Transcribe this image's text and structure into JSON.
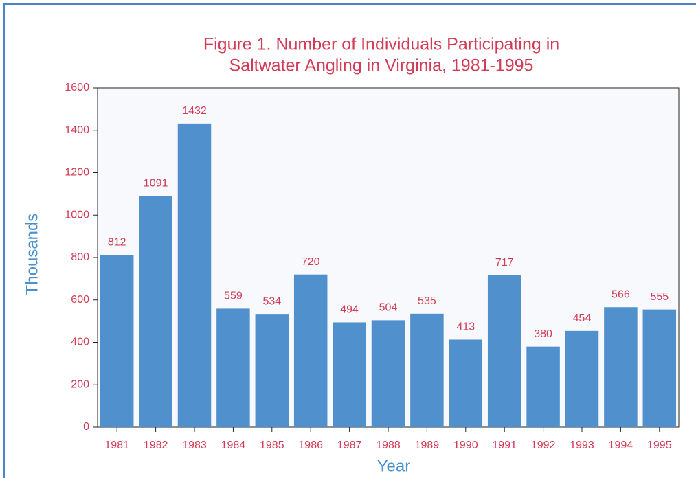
{
  "chart_data": {
    "type": "bar",
    "title": [
      "Figure 1.  Number of Individuals Participating in",
      "Saltwater Angling in Virginia, 1981-1995"
    ],
    "x_label": "Year",
    "y_label": "Thousands",
    "categories": [
      "1981",
      "1982",
      "1983",
      "1984",
      "1985",
      "1986",
      "1987",
      "1988",
      "1989",
      "1990",
      "1991",
      "1992",
      "1993",
      "1994",
      "1995"
    ],
    "values": [
      812,
      1091,
      1432,
      559,
      534,
      720,
      494,
      504,
      535,
      413,
      717,
      380,
      454,
      566,
      555
    ],
    "color": "#4f90cd",
    "ylim": [
      0,
      1600
    ],
    "yticks": [
      0,
      200,
      400,
      600,
      800,
      1000,
      1200,
      1400,
      1600
    ],
    "grid": false
  }
}
